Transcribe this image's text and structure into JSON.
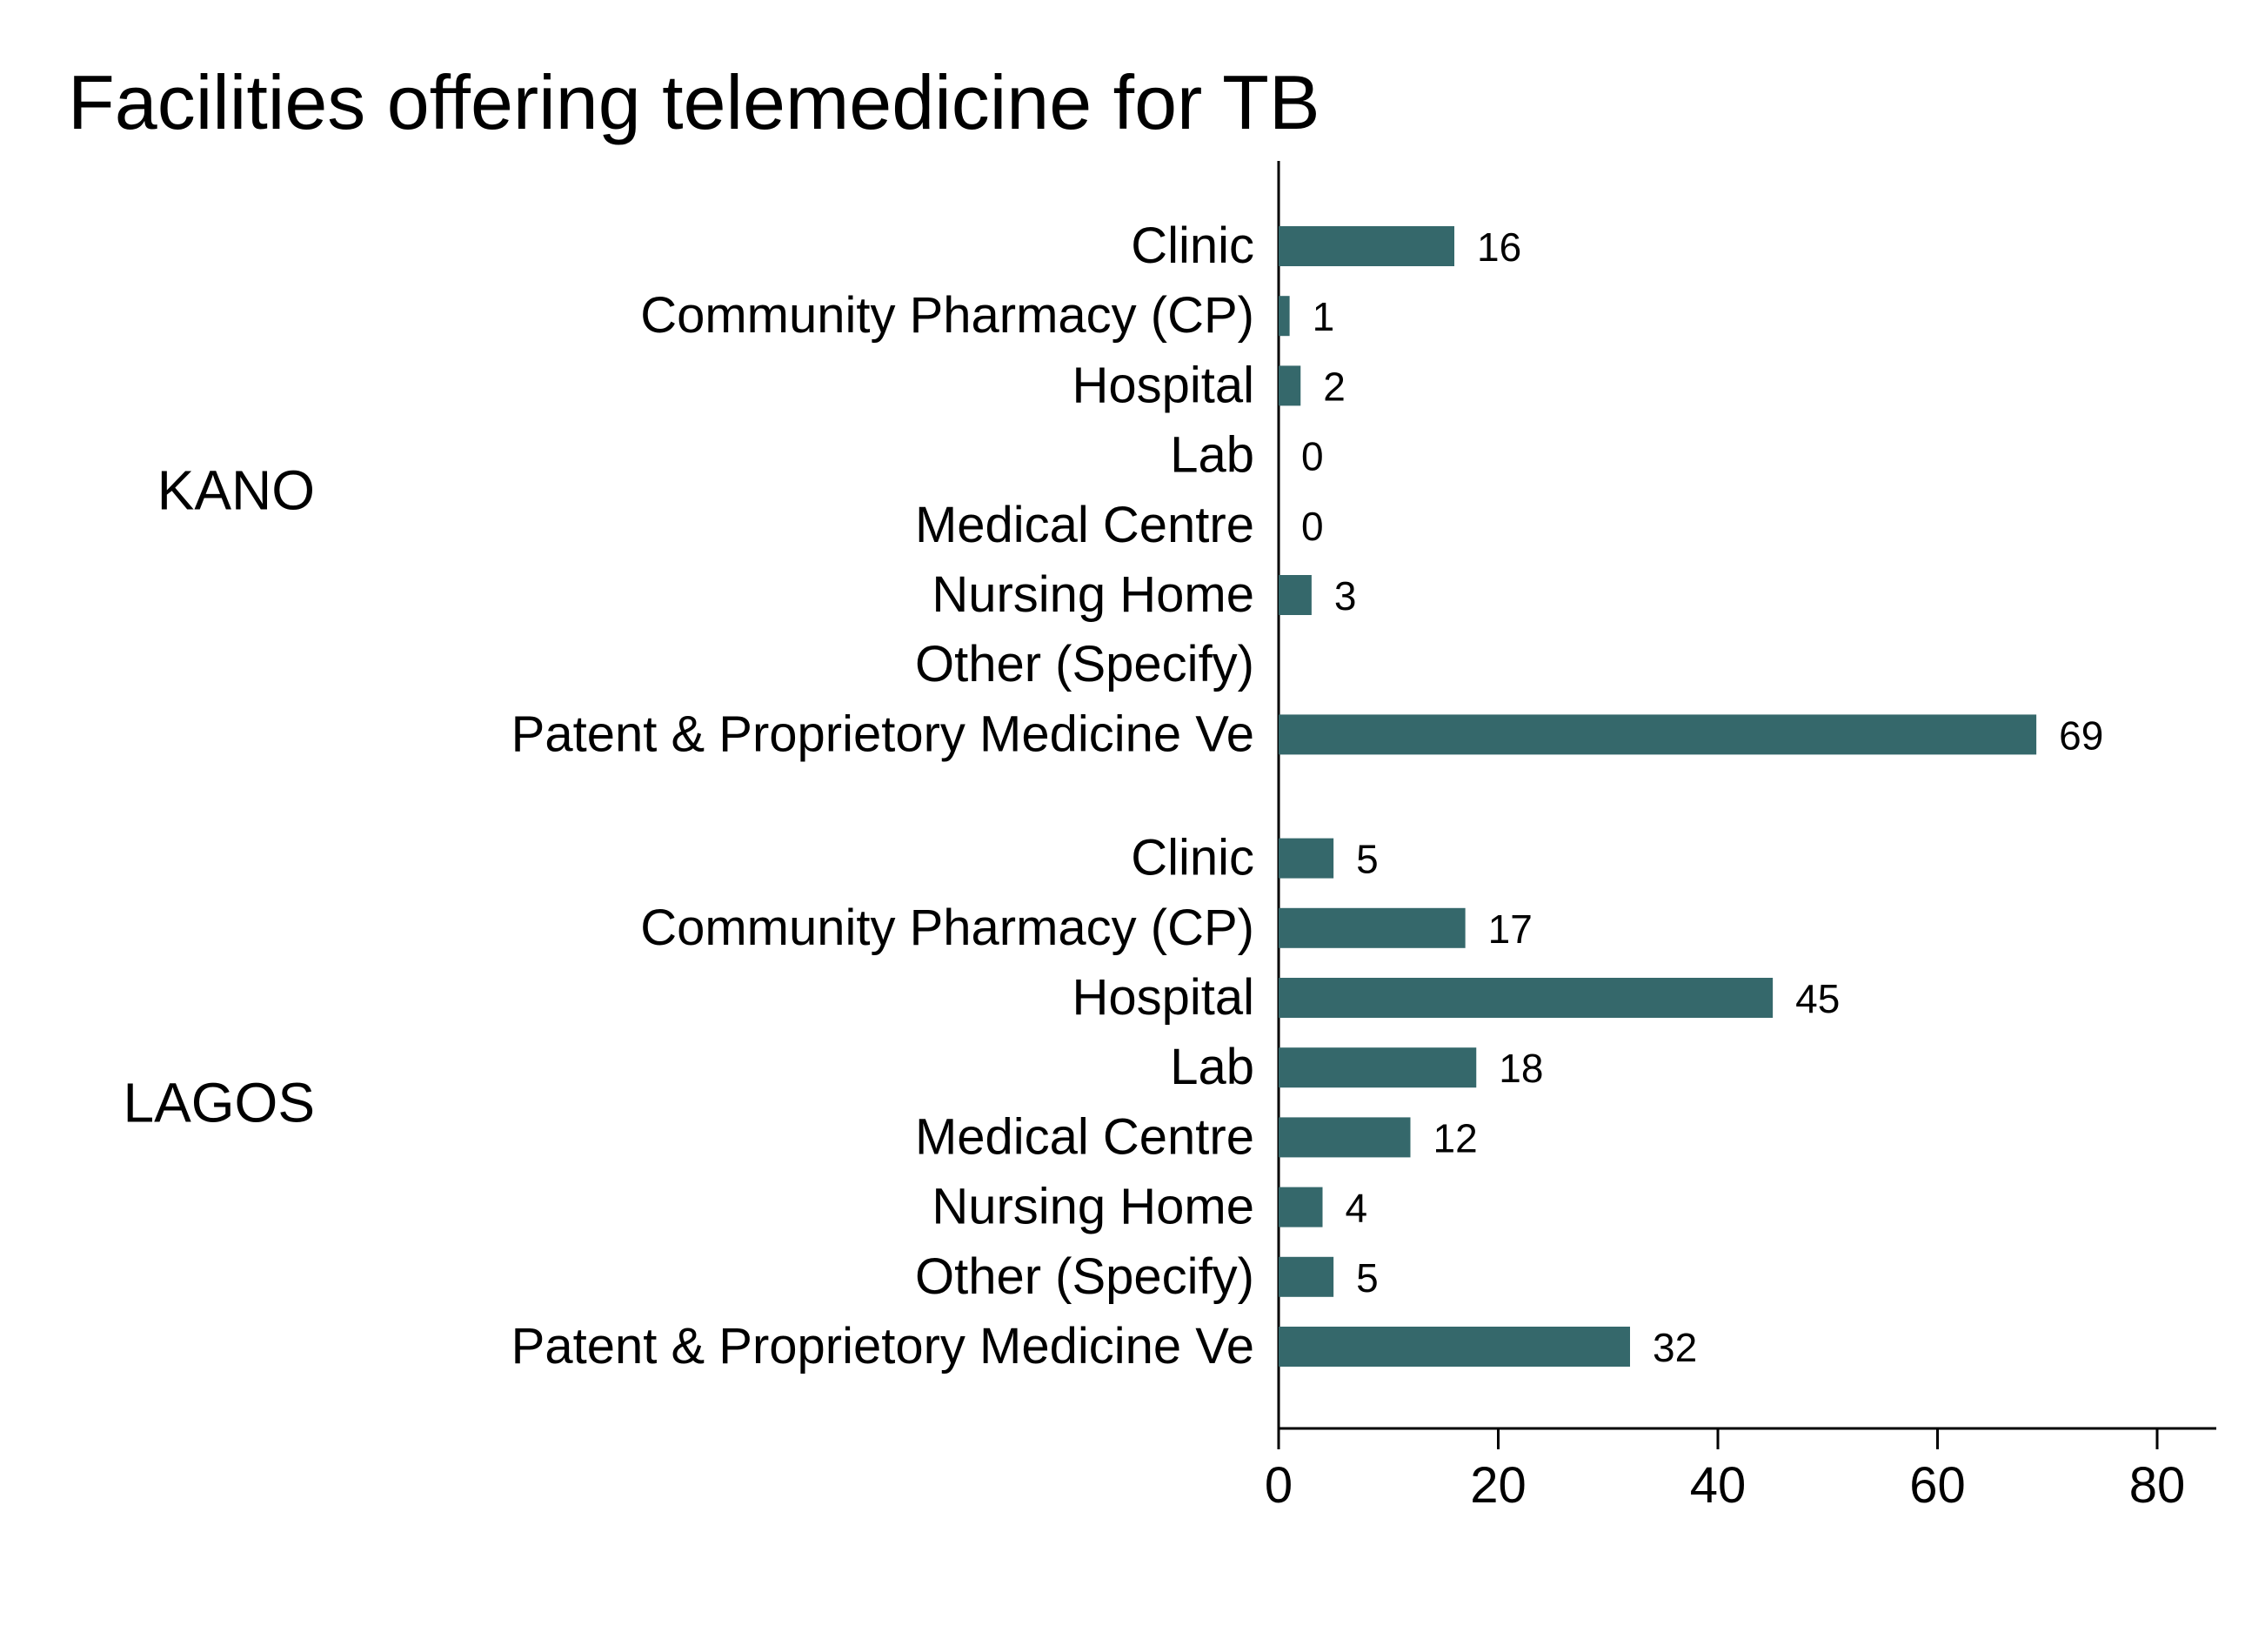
{
  "chart_data": {
    "type": "bar",
    "orientation": "horizontal",
    "title": "Facilities offering telemedicine for TB",
    "xlabel": "",
    "ylabel": "",
    "xlim": [
      0,
      85
    ],
    "x_ticks": [
      0,
      20,
      40,
      60,
      80
    ],
    "grid": false,
    "legend": "none",
    "bar_color": "#35686b",
    "groups": [
      {
        "name": "KANO",
        "categories": [
          "Clinic",
          "Community Pharmacy (CP)",
          "Hospital",
          "Lab",
          "Medical Centre",
          "Nursing Home",
          "Other (Specify)",
          "Patent & Proprietory Medicine Ve"
        ],
        "values": [
          16,
          1,
          2,
          0,
          0,
          3,
          null,
          69
        ]
      },
      {
        "name": "LAGOS",
        "categories": [
          "Clinic",
          "Community Pharmacy (CP)",
          "Hospital",
          "Lab",
          "Medical Centre",
          "Nursing Home",
          "Other (Specify)",
          "Patent & Proprietory Medicine Ve"
        ],
        "values": [
          5,
          17,
          45,
          18,
          12,
          4,
          5,
          32
        ]
      }
    ]
  }
}
